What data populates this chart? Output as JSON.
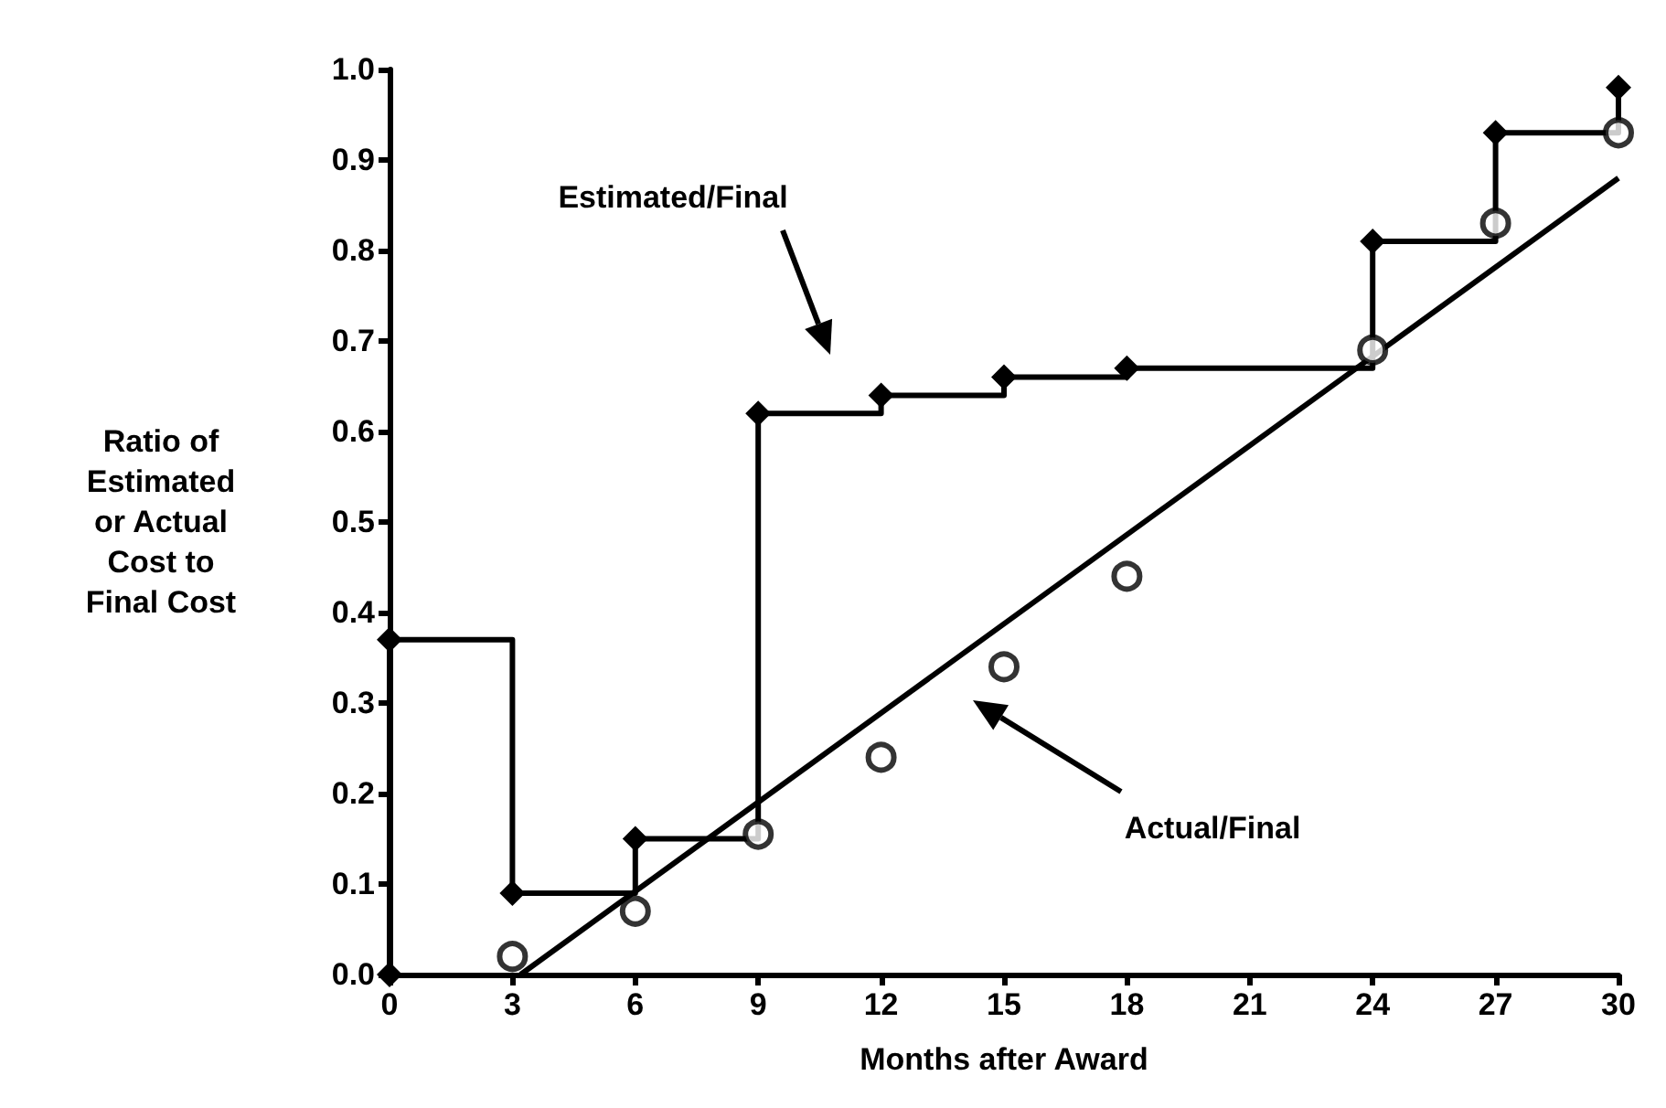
{
  "chart_data": {
    "type": "line",
    "xlabel": "Months after Award",
    "ylabel": "Ratio of\nEstimated\nor Actual\nCost to\nFinal Cost",
    "xlim": [
      0,
      30
    ],
    "xticks": [
      0,
      3,
      6,
      9,
      12,
      15,
      18,
      21,
      24,
      27,
      30
    ],
    "ylim": [
      0,
      1
    ],
    "yticks": [
      {
        "value": 0,
        "label": "0.0"
      },
      0.1,
      0.2,
      0.3,
      0.4,
      0.5,
      0.6,
      0.7,
      0.8,
      0.9,
      {
        "value": 1,
        "label": "1.0"
      }
    ],
    "grid": false,
    "series": [
      {
        "type": "step",
        "color": "#000000",
        "marker": "diamond",
        "x": [
          0,
          0,
          3,
          6,
          9,
          12,
          15,
          18,
          24,
          27,
          30
        ],
        "values": [
          0,
          0.37,
          0.09,
          0.15,
          0.62,
          0.64,
          0.66,
          0.67,
          0.81,
          0.93,
          0.98
        ]
      },
      {
        "type": "scatter",
        "color": "#000000",
        "marker": "circle",
        "x": [
          3,
          6,
          9,
          12,
          15,
          18,
          24,
          27,
          30
        ],
        "values": [
          0.02,
          0.07,
          0.155,
          0.24,
          0.34,
          0.44,
          0.69,
          0.83,
          0.93
        ]
      },
      {
        "color": "#000000",
        "marker": "none",
        "x": [
          3.2,
          30
        ],
        "values": [
          0,
          0.88
        ]
      }
    ],
    "annotations": [
      "Estimated/Final",
      "Actual/Final"
    ]
  }
}
